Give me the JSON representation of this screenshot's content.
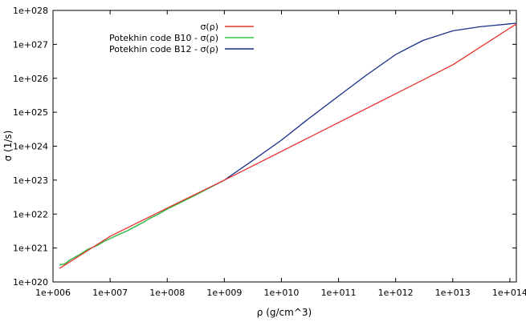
{
  "chart_data": {
    "type": "line",
    "title": "",
    "xlabel": "ρ (g/cm^3)",
    "ylabel": "σ (1/s)",
    "x_scale": "log",
    "y_scale": "log",
    "xlim": [
      1000000.0,
      130000000000000.0
    ],
    "ylim": [
      1e+20,
      1e+28
    ],
    "x_ticks": [
      1000000.0,
      10000000.0,
      100000000.0,
      1000000000.0,
      10000000000.0,
      100000000000.0,
      1000000000000.0,
      10000000000000.0,
      100000000000000.0
    ],
    "x_tick_labels": [
      "1e+006",
      "1e+007",
      "1e+008",
      "1e+009",
      "1e+010",
      "1e+011",
      "1e+012",
      "1e+013",
      "1e+014"
    ],
    "y_ticks": [
      1e+20,
      1e+21,
      1e+22,
      1e+23,
      1e+24,
      1e+25,
      1e+26,
      1e+27,
      1e+28
    ],
    "y_tick_labels": [
      "1e+020",
      "1e+021",
      "1e+022",
      "1e+023",
      "1e+024",
      "1e+025",
      "1e+026",
      "1e+027",
      "1e+028"
    ],
    "grid": false,
    "legend_position": "top-left",
    "series": [
      {
        "name": "σ(ρ)",
        "color": "#e8302a",
        "x": [
          1300000.0,
          10000000.0,
          100000000.0,
          1000000000.0,
          10000000000.0,
          100000000000.0,
          1000000000000.0,
          10000000000000.0,
          130000000000000.0
        ],
        "y": [
          2.5e+20,
          2.2e+21,
          1.5e+22,
          1e+23,
          7e+23,
          5e+24,
          3.5e+25,
          2.5e+26,
          4e+27
        ]
      },
      {
        "name": "Potekhin code B10 - σ(ρ)",
        "color": "#2ecc40",
        "x": [
          1300000.0,
          1600000.0,
          2000000.0,
          2500000.0,
          3200000.0,
          4000000.0,
          6000000.0,
          8000000.0,
          10000000.0,
          15000000.0,
          20000000.0,
          30000000.0,
          40000000.0,
          50000000.0,
          70000000.0,
          100000000.0,
          300000000.0,
          1000000000.0
        ],
        "y": [
          3.2e+20,
          3.4e+20,
          4.5e+20,
          5.5e+20,
          7e+20,
          9e+20,
          1.2e+21,
          1.6e+21,
          1.9e+21,
          2.6e+21,
          3.2e+21,
          4.6e+21,
          6e+21,
          7.5e+21,
          1e+22,
          1.4e+22,
          3.5e+22,
          1e+23
        ]
      },
      {
        "name": "Potekhin code B12 - σ(ρ)",
        "color": "#1a2f8a",
        "x": [
          1300000.0,
          1600000.0,
          2000000.0,
          2500000.0,
          3200000.0,
          4000000.0,
          6000000.0,
          8000000.0,
          10000000.0,
          15000000.0,
          20000000.0,
          30000000.0,
          40000000.0,
          50000000.0,
          70000000.0,
          100000000.0,
          300000000.0,
          1000000000.0,
          3000000000.0,
          10000000000.0,
          30000000000.0,
          100000000000.0,
          300000000000.0,
          1000000000000.0,
          3000000000000.0,
          10000000000000.0,
          30000000000000.0,
          130000000000000.0
        ],
        "y": [
          3.2e+20,
          3.4e+20,
          4.5e+20,
          5.5e+20,
          7e+20,
          9e+20,
          1.2e+21,
          1.6e+21,
          1.9e+21,
          2.6e+21,
          3.2e+21,
          4.6e+21,
          6e+21,
          7.5e+21,
          1e+22,
          1.4e+22,
          3.5e+22,
          1e+23,
          3.6e+23,
          1.5e+24,
          6.5e+24,
          3e+25,
          1.2e+26,
          5e+26,
          1.3e+27,
          2.5e+27,
          3.3e+27,
          4.2e+27
        ]
      }
    ]
  }
}
